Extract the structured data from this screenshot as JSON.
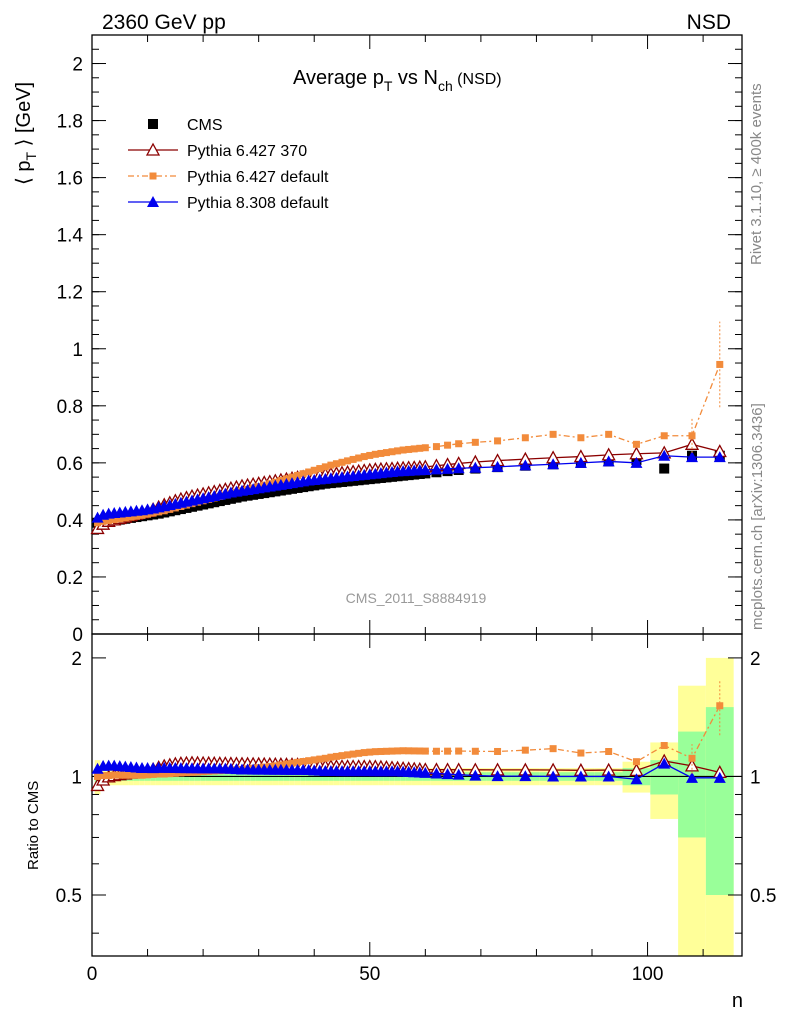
{
  "header": {
    "left": "2360 GeV pp",
    "right": "NSD"
  },
  "side_text": {
    "rivet": "Rivet 3.1.10, ≥ 400k events",
    "mcplots": "mcplots.cern.ch [arXiv:1306.3436]"
  },
  "chart_data": {
    "type": "scatter",
    "title_parts": {
      "a": "Average p",
      "a_sub": "T",
      "b": " vs N",
      "b_sub": "ch",
      "c": " (NSD)"
    },
    "watermark": "CMS_2011_S8884919",
    "xlabel": "n",
    "ylabel_parts": {
      "a": "⟨ p",
      "a_sub": "T",
      "b": " ⟩ [GeV]"
    },
    "ratio_ylabel": "Ratio to CMS",
    "xlim": [
      0,
      117
    ],
    "ylim": [
      0,
      2.1
    ],
    "ratio_ylim": [
      0.35,
      2.3
    ],
    "x_ticks": [
      "0",
      "50",
      "100"
    ],
    "y_ticks": [
      "0",
      "0.2",
      "0.4",
      "0.6",
      "0.8",
      "1",
      "1.2",
      "1.4",
      "1.6",
      "1.8",
      "2"
    ],
    "ratio_ticks": [
      "0.5",
      "1",
      "2"
    ],
    "legend_placement": "top-left",
    "series": [
      {
        "name": "CMS",
        "color": "#000000",
        "marker": "square",
        "x": [
          1,
          2,
          3,
          4,
          5,
          6,
          7,
          8,
          9,
          10,
          11,
          12,
          13,
          14,
          15,
          16,
          17,
          18,
          19,
          20,
          21,
          22,
          23,
          24,
          25,
          26,
          27,
          28,
          29,
          30,
          31,
          32,
          33,
          34,
          35,
          36,
          37,
          38,
          39,
          40,
          41,
          42,
          43,
          44,
          45,
          46,
          47,
          48,
          49,
          50,
          51,
          52,
          53,
          54,
          55,
          56,
          57,
          58,
          59,
          60,
          62,
          64,
          66,
          69,
          73,
          78,
          83,
          88,
          93,
          98,
          103,
          108,
          113
        ],
        "y": [
          0.39,
          0.393,
          0.396,
          0.398,
          0.401,
          0.404,
          0.407,
          0.41,
          0.413,
          0.416,
          0.419,
          0.422,
          0.426,
          0.43,
          0.434,
          0.438,
          0.442,
          0.446,
          0.45,
          0.454,
          0.458,
          0.462,
          0.466,
          0.47,
          0.474,
          0.478,
          0.482,
          0.485,
          0.488,
          0.491,
          0.494,
          0.497,
          0.5,
          0.503,
          0.506,
          0.509,
          0.512,
          0.515,
          0.518,
          0.521,
          0.524,
          0.527,
          0.529,
          0.531,
          0.533,
          0.535,
          0.537,
          0.539,
          0.541,
          0.543,
          0.545,
          0.547,
          0.549,
          0.551,
          0.553,
          0.555,
          0.557,
          0.559,
          0.561,
          0.563,
          0.567,
          0.571,
          0.575,
          0.58,
          0.585,
          0.59,
          0.595,
          0.6,
          0.605,
          0.61,
          0.58,
          0.625,
          0.625
        ]
      },
      {
        "name": "Pythia 6.427 370",
        "color": "#8b0000",
        "marker": "triangle-open",
        "x": [
          1,
          2,
          3,
          4,
          5,
          6,
          7,
          8,
          9,
          10,
          11,
          12,
          13,
          14,
          15,
          16,
          17,
          18,
          19,
          20,
          21,
          22,
          23,
          24,
          25,
          26,
          27,
          28,
          29,
          30,
          31,
          32,
          33,
          34,
          35,
          36,
          37,
          38,
          39,
          40,
          41,
          42,
          43,
          44,
          45,
          46,
          47,
          48,
          49,
          50,
          51,
          52,
          53,
          54,
          55,
          56,
          57,
          58,
          59,
          60,
          62,
          64,
          66,
          69,
          73,
          78,
          83,
          88,
          93,
          98,
          103,
          108,
          113
        ],
        "y": [
          0.37,
          0.385,
          0.395,
          0.4,
          0.405,
          0.41,
          0.415,
          0.42,
          0.425,
          0.43,
          0.437,
          0.445,
          0.453,
          0.46,
          0.467,
          0.473,
          0.478,
          0.483,
          0.487,
          0.491,
          0.495,
          0.499,
          0.503,
          0.507,
          0.511,
          0.515,
          0.519,
          0.522,
          0.525,
          0.528,
          0.531,
          0.534,
          0.537,
          0.54,
          0.543,
          0.546,
          0.549,
          0.551,
          0.553,
          0.555,
          0.557,
          0.559,
          0.561,
          0.563,
          0.565,
          0.567,
          0.569,
          0.571,
          0.573,
          0.575,
          0.577,
          0.578,
          0.579,
          0.58,
          0.581,
          0.582,
          0.583,
          0.584,
          0.585,
          0.586,
          0.59,
          0.594,
          0.598,
          0.603,
          0.608,
          0.613,
          0.618,
          0.622,
          0.628,
          0.632,
          0.635,
          0.665,
          0.64
        ]
      },
      {
        "name": "Pythia 6.427 default",
        "color": "#f28b3b",
        "marker": "square-small",
        "x": [
          1,
          2,
          3,
          4,
          5,
          6,
          7,
          8,
          9,
          10,
          11,
          12,
          13,
          14,
          15,
          16,
          17,
          18,
          19,
          20,
          21,
          22,
          23,
          24,
          25,
          26,
          27,
          28,
          29,
          30,
          31,
          32,
          33,
          34,
          35,
          36,
          37,
          38,
          39,
          40,
          41,
          42,
          43,
          44,
          45,
          46,
          47,
          48,
          49,
          50,
          51,
          52,
          53,
          54,
          55,
          56,
          57,
          58,
          59,
          60,
          62,
          64,
          66,
          69,
          73,
          78,
          83,
          88,
          93,
          98,
          103,
          108,
          113
        ],
        "y": [
          0.39,
          0.395,
          0.398,
          0.401,
          0.404,
          0.407,
          0.41,
          0.413,
          0.416,
          0.42,
          0.424,
          0.428,
          0.432,
          0.437,
          0.442,
          0.447,
          0.452,
          0.457,
          0.462,
          0.467,
          0.472,
          0.477,
          0.482,
          0.487,
          0.492,
          0.497,
          0.502,
          0.507,
          0.512,
          0.517,
          0.522,
          0.527,
          0.532,
          0.538,
          0.544,
          0.55,
          0.556,
          0.562,
          0.568,
          0.574,
          0.58,
          0.586,
          0.592,
          0.597,
          0.602,
          0.607,
          0.612,
          0.617,
          0.622,
          0.626,
          0.63,
          0.633,
          0.636,
          0.639,
          0.642,
          0.645,
          0.647,
          0.649,
          0.651,
          0.653,
          0.657,
          0.662,
          0.667,
          0.672,
          0.677,
          0.688,
          0.7,
          0.688,
          0.7,
          0.665,
          0.695,
          0.695,
          0.945
        ]
      },
      {
        "name": "Pythia 8.308 default",
        "color": "#0000ee",
        "marker": "triangle-filled",
        "x": [
          1,
          2,
          3,
          4,
          5,
          6,
          7,
          8,
          9,
          10,
          11,
          12,
          13,
          14,
          15,
          16,
          17,
          18,
          19,
          20,
          21,
          22,
          23,
          24,
          25,
          26,
          27,
          28,
          29,
          30,
          31,
          32,
          33,
          34,
          35,
          36,
          37,
          38,
          39,
          40,
          41,
          42,
          43,
          44,
          45,
          46,
          47,
          48,
          49,
          50,
          51,
          52,
          53,
          54,
          55,
          56,
          57,
          58,
          59,
          60,
          62,
          64,
          66,
          69,
          73,
          78,
          83,
          88,
          93,
          98,
          103,
          108,
          113
        ],
        "y": [
          0.408,
          0.418,
          0.422,
          0.424,
          0.426,
          0.428,
          0.43,
          0.432,
          0.434,
          0.437,
          0.44,
          0.444,
          0.448,
          0.452,
          0.456,
          0.46,
          0.464,
          0.468,
          0.472,
          0.476,
          0.48,
          0.484,
          0.488,
          0.492,
          0.496,
          0.499,
          0.502,
          0.505,
          0.508,
          0.511,
          0.514,
          0.517,
          0.52,
          0.523,
          0.526,
          0.529,
          0.532,
          0.535,
          0.538,
          0.54,
          0.542,
          0.544,
          0.546,
          0.548,
          0.55,
          0.552,
          0.554,
          0.556,
          0.558,
          0.56,
          0.562,
          0.564,
          0.566,
          0.568,
          0.57,
          0.571,
          0.572,
          0.573,
          0.574,
          0.575,
          0.577,
          0.579,
          0.581,
          0.583,
          0.586,
          0.591,
          0.595,
          0.6,
          0.605,
          0.6,
          0.625,
          0.62,
          0.62
        ]
      }
    ]
  }
}
